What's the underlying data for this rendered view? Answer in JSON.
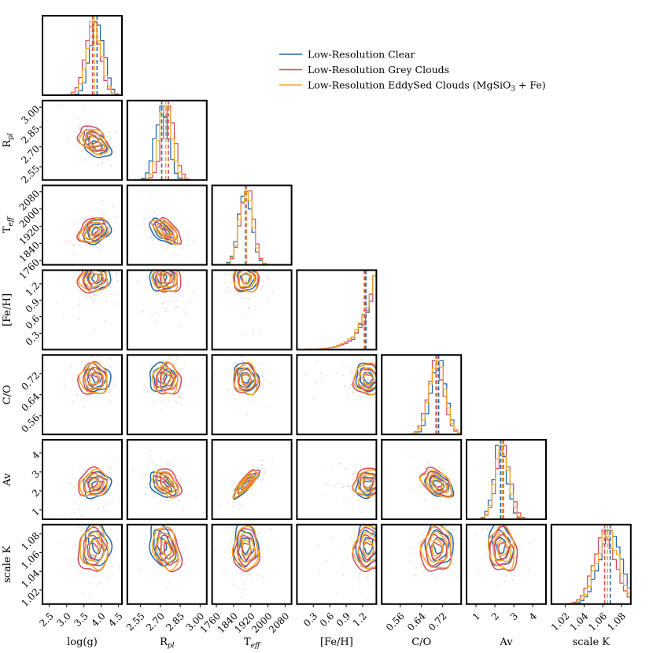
{
  "chart_data": {
    "type": "corner",
    "parameters": [
      {
        "key": "logg",
        "label": "log(g)",
        "range": [
          2.3,
          4.6
        ],
        "ticks": [
          2.5,
          3.0,
          3.5,
          4.0,
          4.5
        ],
        "tick_labels": [
          "2.5",
          "3.0",
          "3.5",
          "4.0",
          "4.5"
        ]
      },
      {
        "key": "rpl",
        "label": "Rpl",
        "range": [
          2.45,
          3.05
        ],
        "ticks": [
          2.55,
          2.7,
          2.85,
          3.0
        ],
        "tick_labels": [
          "2.55",
          "2.70",
          "2.85",
          "3.00"
        ]
      },
      {
        "key": "teff",
        "label": "Teff",
        "range": [
          1740,
          2110
        ],
        "ticks": [
          1760,
          1840,
          1920,
          2000,
          2080
        ],
        "tick_labels": [
          "1760",
          "1840",
          "1920",
          "2000",
          "2080"
        ]
      },
      {
        "key": "feh",
        "label": "[Fe/H]",
        "range": [
          0.0,
          1.45
        ],
        "ticks": [
          0.3,
          0.6,
          0.9,
          1.2
        ],
        "tick_labels": [
          "0.3",
          "0.6",
          "0.9",
          "1.2"
        ]
      },
      {
        "key": "co",
        "label": "C/O",
        "range": [
          0.49,
          0.79
        ],
        "ticks": [
          0.56,
          0.64,
          0.72
        ],
        "tick_labels": [
          "0.56",
          "0.64",
          "0.72"
        ]
      },
      {
        "key": "av",
        "label": "Av",
        "range": [
          0.5,
          4.7
        ],
        "ticks": [
          1,
          2,
          3,
          4
        ],
        "tick_labels": [
          "1",
          "2",
          "3",
          "4"
        ]
      },
      {
        "key": "scalek",
        "label": "scale K",
        "range": [
          1.005,
          1.09
        ],
        "ticks": [
          1.02,
          1.04,
          1.06,
          1.08
        ],
        "tick_labels": [
          "1.02",
          "1.04",
          "1.06",
          "1.08"
        ]
      }
    ],
    "y_tick_labels": {
      "rpl": [
        "2.55",
        "2.70",
        "2.85",
        "3.00"
      ],
      "teff": [
        "1760",
        "1840",
        "1920",
        "2000",
        "2080"
      ],
      "feh": [
        "0.3",
        "0.6",
        "0.9",
        "1.2"
      ],
      "co": [
        "0.56",
        "0.64",
        "0.72"
      ],
      "av": [
        "1",
        "2",
        "3",
        "4"
      ],
      "scalek": [
        "1.02",
        "1.04",
        "1.06",
        "1.08"
      ]
    },
    "series": [
      {
        "name": "Low-Resolution Clear",
        "color": "#2066a8",
        "median": {
          "logg": 3.88,
          "rpl": 2.71,
          "teff": 1895,
          "feh": 1.26,
          "co": 0.705,
          "av": 2.3,
          "scalek": 1.068
        },
        "sigma": {
          "logg": 0.2,
          "rpl": 0.05,
          "teff": 30,
          "feh": 0.12,
          "co": 0.028,
          "av": 0.35,
          "scalek": 0.012
        }
      },
      {
        "name": "Low-Resolution Grey Clouds",
        "color": "#d1495b",
        "median": {
          "logg": 3.75,
          "rpl": 2.76,
          "teff": 1900,
          "feh": 1.24,
          "co": 0.695,
          "av": 2.45,
          "scalek": 1.062
        },
        "sigma": {
          "logg": 0.22,
          "rpl": 0.05,
          "teff": 30,
          "feh": 0.14,
          "co": 0.03,
          "av": 0.38,
          "scalek": 0.012
        }
      },
      {
        "name": "Low-Resolution EddySed Clouds (MgSiO3 + Fe)",
        "color": "#f5a623",
        "median": {
          "logg": 3.8,
          "rpl": 2.74,
          "teff": 1898,
          "feh": 1.22,
          "co": 0.7,
          "av": 2.38,
          "scalek": 1.065
        },
        "sigma": {
          "logg": 0.21,
          "rpl": 0.05,
          "teff": 30,
          "feh": 0.13,
          "co": 0.03,
          "av": 0.36,
          "scalek": 0.012
        }
      }
    ],
    "legend_position": "top-right"
  }
}
